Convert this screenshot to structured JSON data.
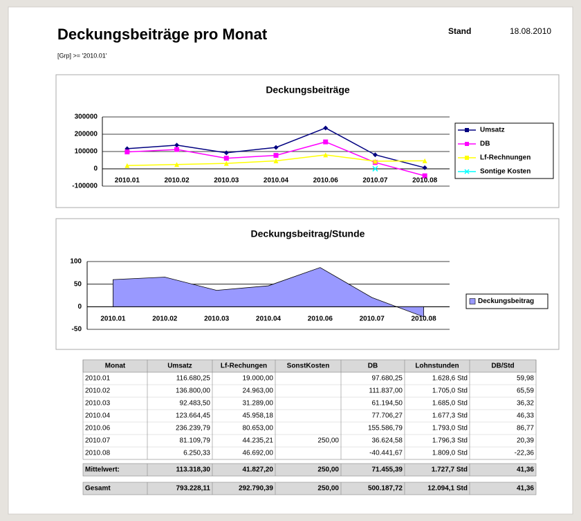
{
  "header": {
    "title": "Deckungsbeiträge pro Monat",
    "stand_label": "Stand",
    "date": "18.08.2010",
    "filter": "[Grp] >= '2010.01'"
  },
  "chart_data": [
    {
      "type": "line",
      "title": "Deckungsbeiträge",
      "categories": [
        "2010.01",
        "2010.02",
        "2010.03",
        "2010.04",
        "2010.06",
        "2010.07",
        "2010.08"
      ],
      "series": [
        {
          "name": "Umsatz",
          "color": "#000080",
          "marker": "diamond",
          "values": [
            116680.25,
            136800.0,
            92483.5,
            123664.45,
            236239.79,
            81109.79,
            6250.33
          ]
        },
        {
          "name": "DB",
          "color": "#ff00ff",
          "marker": "square",
          "values": [
            97680.25,
            111837.0,
            61194.5,
            77706.27,
            155586.79,
            36624.58,
            -40441.67
          ]
        },
        {
          "name": "Lf-Rechnungen",
          "color": "#ffff00",
          "marker": "triangle",
          "values": [
            19000.0,
            24963.0,
            31289.0,
            45958.18,
            80653.0,
            44235.21,
            46692.0
          ]
        },
        {
          "name": "Sontige Kosten",
          "color": "#00ffff",
          "marker": "x",
          "values": [
            null,
            null,
            null,
            null,
            null,
            250.0,
            null
          ]
        }
      ],
      "ylim": [
        -100000,
        300000
      ],
      "yticks": [
        -100000,
        0,
        100000,
        200000,
        300000
      ],
      "grid": true,
      "legend": "right"
    },
    {
      "type": "area",
      "title": "Deckungsbeitrag/Stunde",
      "categories": [
        "2010.01",
        "2010.02",
        "2010.03",
        "2010.04",
        "2010.06",
        "2010.07",
        "2010.08"
      ],
      "series": [
        {
          "name": "Deckungsbeitrag",
          "color": "#9999ff",
          "values": [
            59.98,
            65.59,
            36.32,
            46.33,
            86.77,
            20.39,
            -22.36
          ]
        }
      ],
      "ylim": [
        -50,
        100
      ],
      "yticks": [
        -50,
        0,
        50,
        100
      ],
      "grid": true,
      "legend": "right"
    }
  ],
  "table": {
    "columns": [
      "Monat",
      "Umsatz",
      "Lf-Rechungen",
      "SonstKosten",
      "DB",
      "Lohnstunden",
      "DB/Std"
    ],
    "rows": [
      [
        "2010.01",
        "116.680,25",
        "19.000,00",
        null,
        "97.680,25",
        "1.628,6 Std",
        "59,98"
      ],
      [
        "2010.02",
        "136.800,00",
        "24.963,00",
        null,
        "111.837,00",
        "1.705,0 Std",
        "65,59"
      ],
      [
        "2010.03",
        "92.483,50",
        "31.289,00",
        null,
        "61.194,50",
        "1.685,0 Std",
        "36,32"
      ],
      [
        "2010.04",
        "123.664,45",
        "45.958,18",
        null,
        "77.706,27",
        "1.677,3 Std",
        "46,33"
      ],
      [
        "2010.06",
        "236.239,79",
        "80.653,00",
        null,
        "155.586,79",
        "1.793,0 Std",
        "86,77"
      ],
      [
        "2010.07",
        "81.109,79",
        "44.235,21",
        "250,00",
        "36.624,58",
        "1.796,3 Std",
        "20,39"
      ],
      [
        "2010.08",
        "6.250,33",
        "46.692,00",
        null,
        "-40.441,67",
        "1.809,0 Std",
        "-22,36"
      ]
    ],
    "summary": [
      [
        "Mittelwert:",
        "113.318,30",
        "41.827,20",
        "250,00",
        "71.455,39",
        "1.727,7 Std",
        "41,36"
      ],
      [
        "Gesamt",
        "793.228,11",
        "292.790,39",
        "250,00",
        "500.187,72",
        "12.094,1 Std",
        "41,36"
      ]
    ]
  }
}
